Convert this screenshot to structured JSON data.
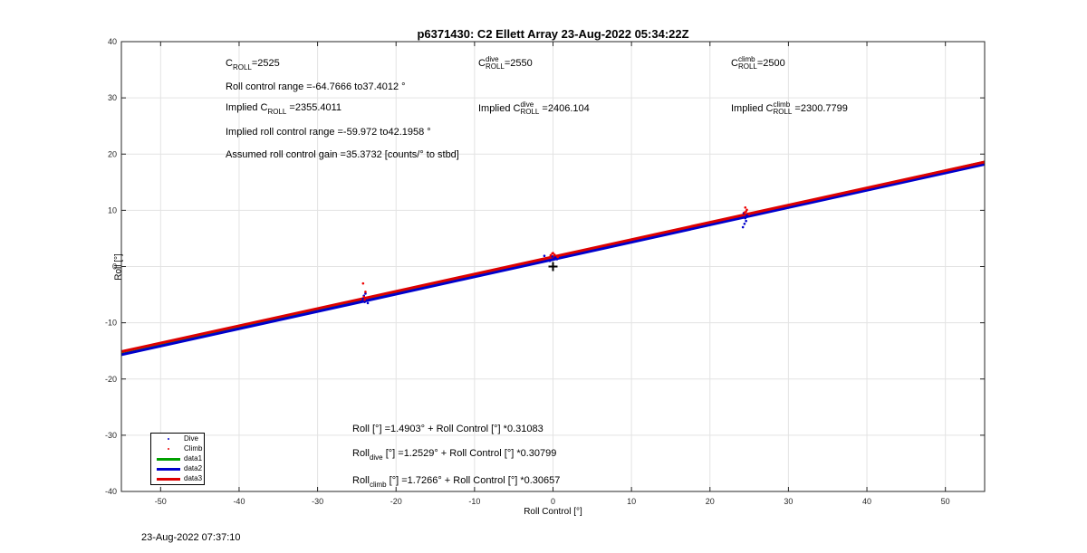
{
  "chart_data": {
    "type": "scatter",
    "title": "p6371430: C2 Ellett Array 23-Aug-2022 05:34:22Z",
    "xlabel": "Roll Control [°]",
    "ylabel": "Roll [°]",
    "xlim": [
      -55,
      55
    ],
    "ylim": [
      -40,
      40
    ],
    "xticks": [
      -50,
      -40,
      -30,
      -20,
      -10,
      0,
      10,
      20,
      30,
      40,
      50
    ],
    "yticks": [
      -40,
      -30,
      -20,
      -10,
      0,
      10,
      20,
      30,
      40
    ],
    "xtick_labels": [
      "-50",
      "-40",
      "-30",
      "-20",
      "-10",
      "0",
      "10",
      "20",
      "30",
      "40",
      "50"
    ],
    "ytick_labels": [
      "-40",
      "-30",
      "-20",
      "-10",
      "0",
      "10",
      "20",
      "30",
      "40"
    ],
    "grid": true,
    "legend_position": "bottom-left",
    "series": [
      {
        "name": "Dive",
        "kind": "points",
        "color": "#0000cc",
        "points": [
          [
            -24.0,
            -6.3
          ],
          [
            -23.8,
            -6.0
          ],
          [
            -24.2,
            -5.7
          ],
          [
            -23.6,
            -6.5
          ],
          [
            -24.1,
            -5.2
          ],
          [
            -23.9,
            -4.8
          ],
          [
            -24.3,
            -6.1
          ],
          [
            -0.2,
            1.2
          ],
          [
            0.1,
            1.4
          ],
          [
            -0.4,
            1.0
          ],
          [
            0.3,
            1.6
          ],
          [
            -0.1,
            1.8
          ],
          [
            0.5,
            1.3
          ],
          [
            -1.1,
            1.9
          ],
          [
            24.2,
            7.0
          ],
          [
            24.4,
            7.6
          ],
          [
            24.6,
            8.1
          ],
          [
            24.5,
            8.6
          ],
          [
            24.7,
            9.1
          ],
          [
            24.3,
            9.5
          ],
          [
            24.8,
            8.9
          ]
        ]
      },
      {
        "name": "Climb",
        "kind": "points",
        "color": "#ee0000",
        "points": [
          [
            -24.2,
            -3.0
          ],
          [
            -23.9,
            -4.5
          ],
          [
            -24.1,
            -5.4
          ],
          [
            -23.7,
            -5.6
          ],
          [
            -24.0,
            -5.9
          ],
          [
            0.0,
            2.4
          ],
          [
            -0.3,
            2.0
          ],
          [
            0.2,
            2.1
          ],
          [
            0.6,
            1.7
          ],
          [
            -0.1,
            2.3
          ],
          [
            24.5,
            10.5
          ],
          [
            24.7,
            10.1
          ],
          [
            24.4,
            9.6
          ],
          [
            25.0,
            9.3
          ],
          [
            24.6,
            9.8
          ]
        ]
      },
      {
        "name": "data1",
        "kind": "line",
        "color": "#00a000",
        "intercept": 1.4903,
        "slope": 0.31083
      },
      {
        "name": "data2",
        "kind": "line",
        "color": "#0000cc",
        "intercept": 1.2529,
        "slope": 0.30799
      },
      {
        "name": "data3",
        "kind": "line",
        "color": "#dd0000",
        "intercept": 1.7266,
        "slope": 0.30657
      }
    ],
    "marker": {
      "x": 0,
      "y": 0,
      "symbol": "+"
    }
  },
  "annotations": {
    "c_roll": {
      "base": "C",
      "sub": "ROLL",
      "value": "=2525"
    },
    "c_roll_dive": {
      "base": "C",
      "sup": "dive",
      "sub": "ROLL",
      "value": "=2550"
    },
    "c_roll_climb": {
      "base": "C",
      "sup": "climb",
      "sub": "ROLL",
      "value": "=2500"
    },
    "roll_control_range": "Roll control range =-64.7666 to37.4012 °",
    "implied_c_roll": {
      "prefix": "Implied C",
      "sub": "ROLL",
      "value": " =2355.4011"
    },
    "implied_c_roll_dive": {
      "prefix": "Implied C",
      "sup": "dive",
      "sub": "ROLL",
      "value": " =2406.104"
    },
    "implied_c_roll_climb": {
      "prefix": "Implied C",
      "sup": "climb",
      "sub": "ROLL",
      "value": " =2300.7799"
    },
    "implied_range": "Implied roll control range =-59.972 to42.1958 °",
    "gain": "Assumed roll control gain =35.3732 [counts/° to stbd]",
    "fit_all": "Roll [°] =1.4903° + Roll Control [°] *0.31083",
    "fit_dive": {
      "prefix": "Roll",
      "sub": "dive",
      "rest": " [°] =1.2529° + Roll Control [°] *0.30799"
    },
    "fit_climb": {
      "prefix": "Roll",
      "sub": "climb",
      "rest": " [°] =1.7266° + Roll Control [°] *0.30657"
    }
  },
  "timestamp": "23-Aug-2022 07:37:10"
}
